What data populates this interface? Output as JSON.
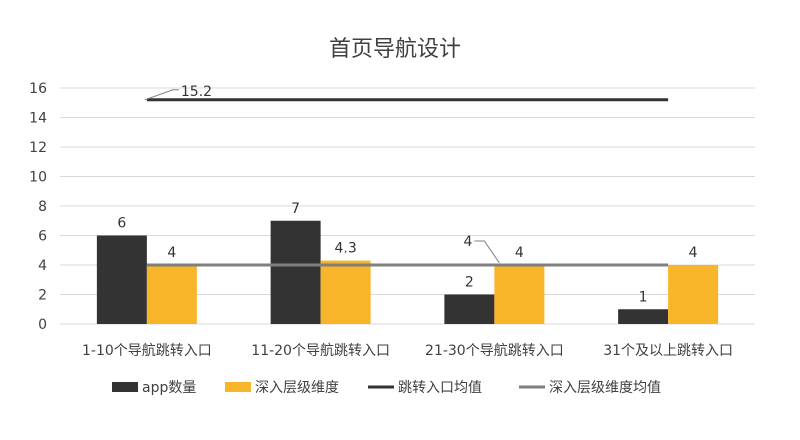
{
  "chart_data": {
    "type": "bar",
    "title": "首页导航设计",
    "categories": [
      "1-10个导航跳转入口",
      "11-20个导航跳转入口",
      "21-30个导航跳转入口",
      "31个及以上跳转入口"
    ],
    "ylim": [
      0,
      16
    ],
    "yticks": [
      0,
      2,
      4,
      6,
      8,
      10,
      12,
      14,
      16
    ],
    "grid": true,
    "legend_position": "bottom",
    "series": [
      {
        "name": "app数量",
        "kind": "bar",
        "color": "#333333",
        "values": [
          6,
          7,
          2,
          1
        ],
        "labels": [
          "6",
          "7",
          "2",
          "1"
        ]
      },
      {
        "name": "深入层级维度",
        "kind": "bar",
        "color": "#f9b52a",
        "values": [
          4,
          4.3,
          4,
          4
        ],
        "labels": [
          "4",
          "4.3",
          "4",
          "4"
        ]
      },
      {
        "name": "跳转入口均值",
        "kind": "line",
        "color": "#333333",
        "value": 15.2,
        "label": "15.2"
      },
      {
        "name": "深入层级维度均值",
        "kind": "line",
        "color": "#7f7f7f",
        "value": 4,
        "label": "4"
      }
    ]
  }
}
